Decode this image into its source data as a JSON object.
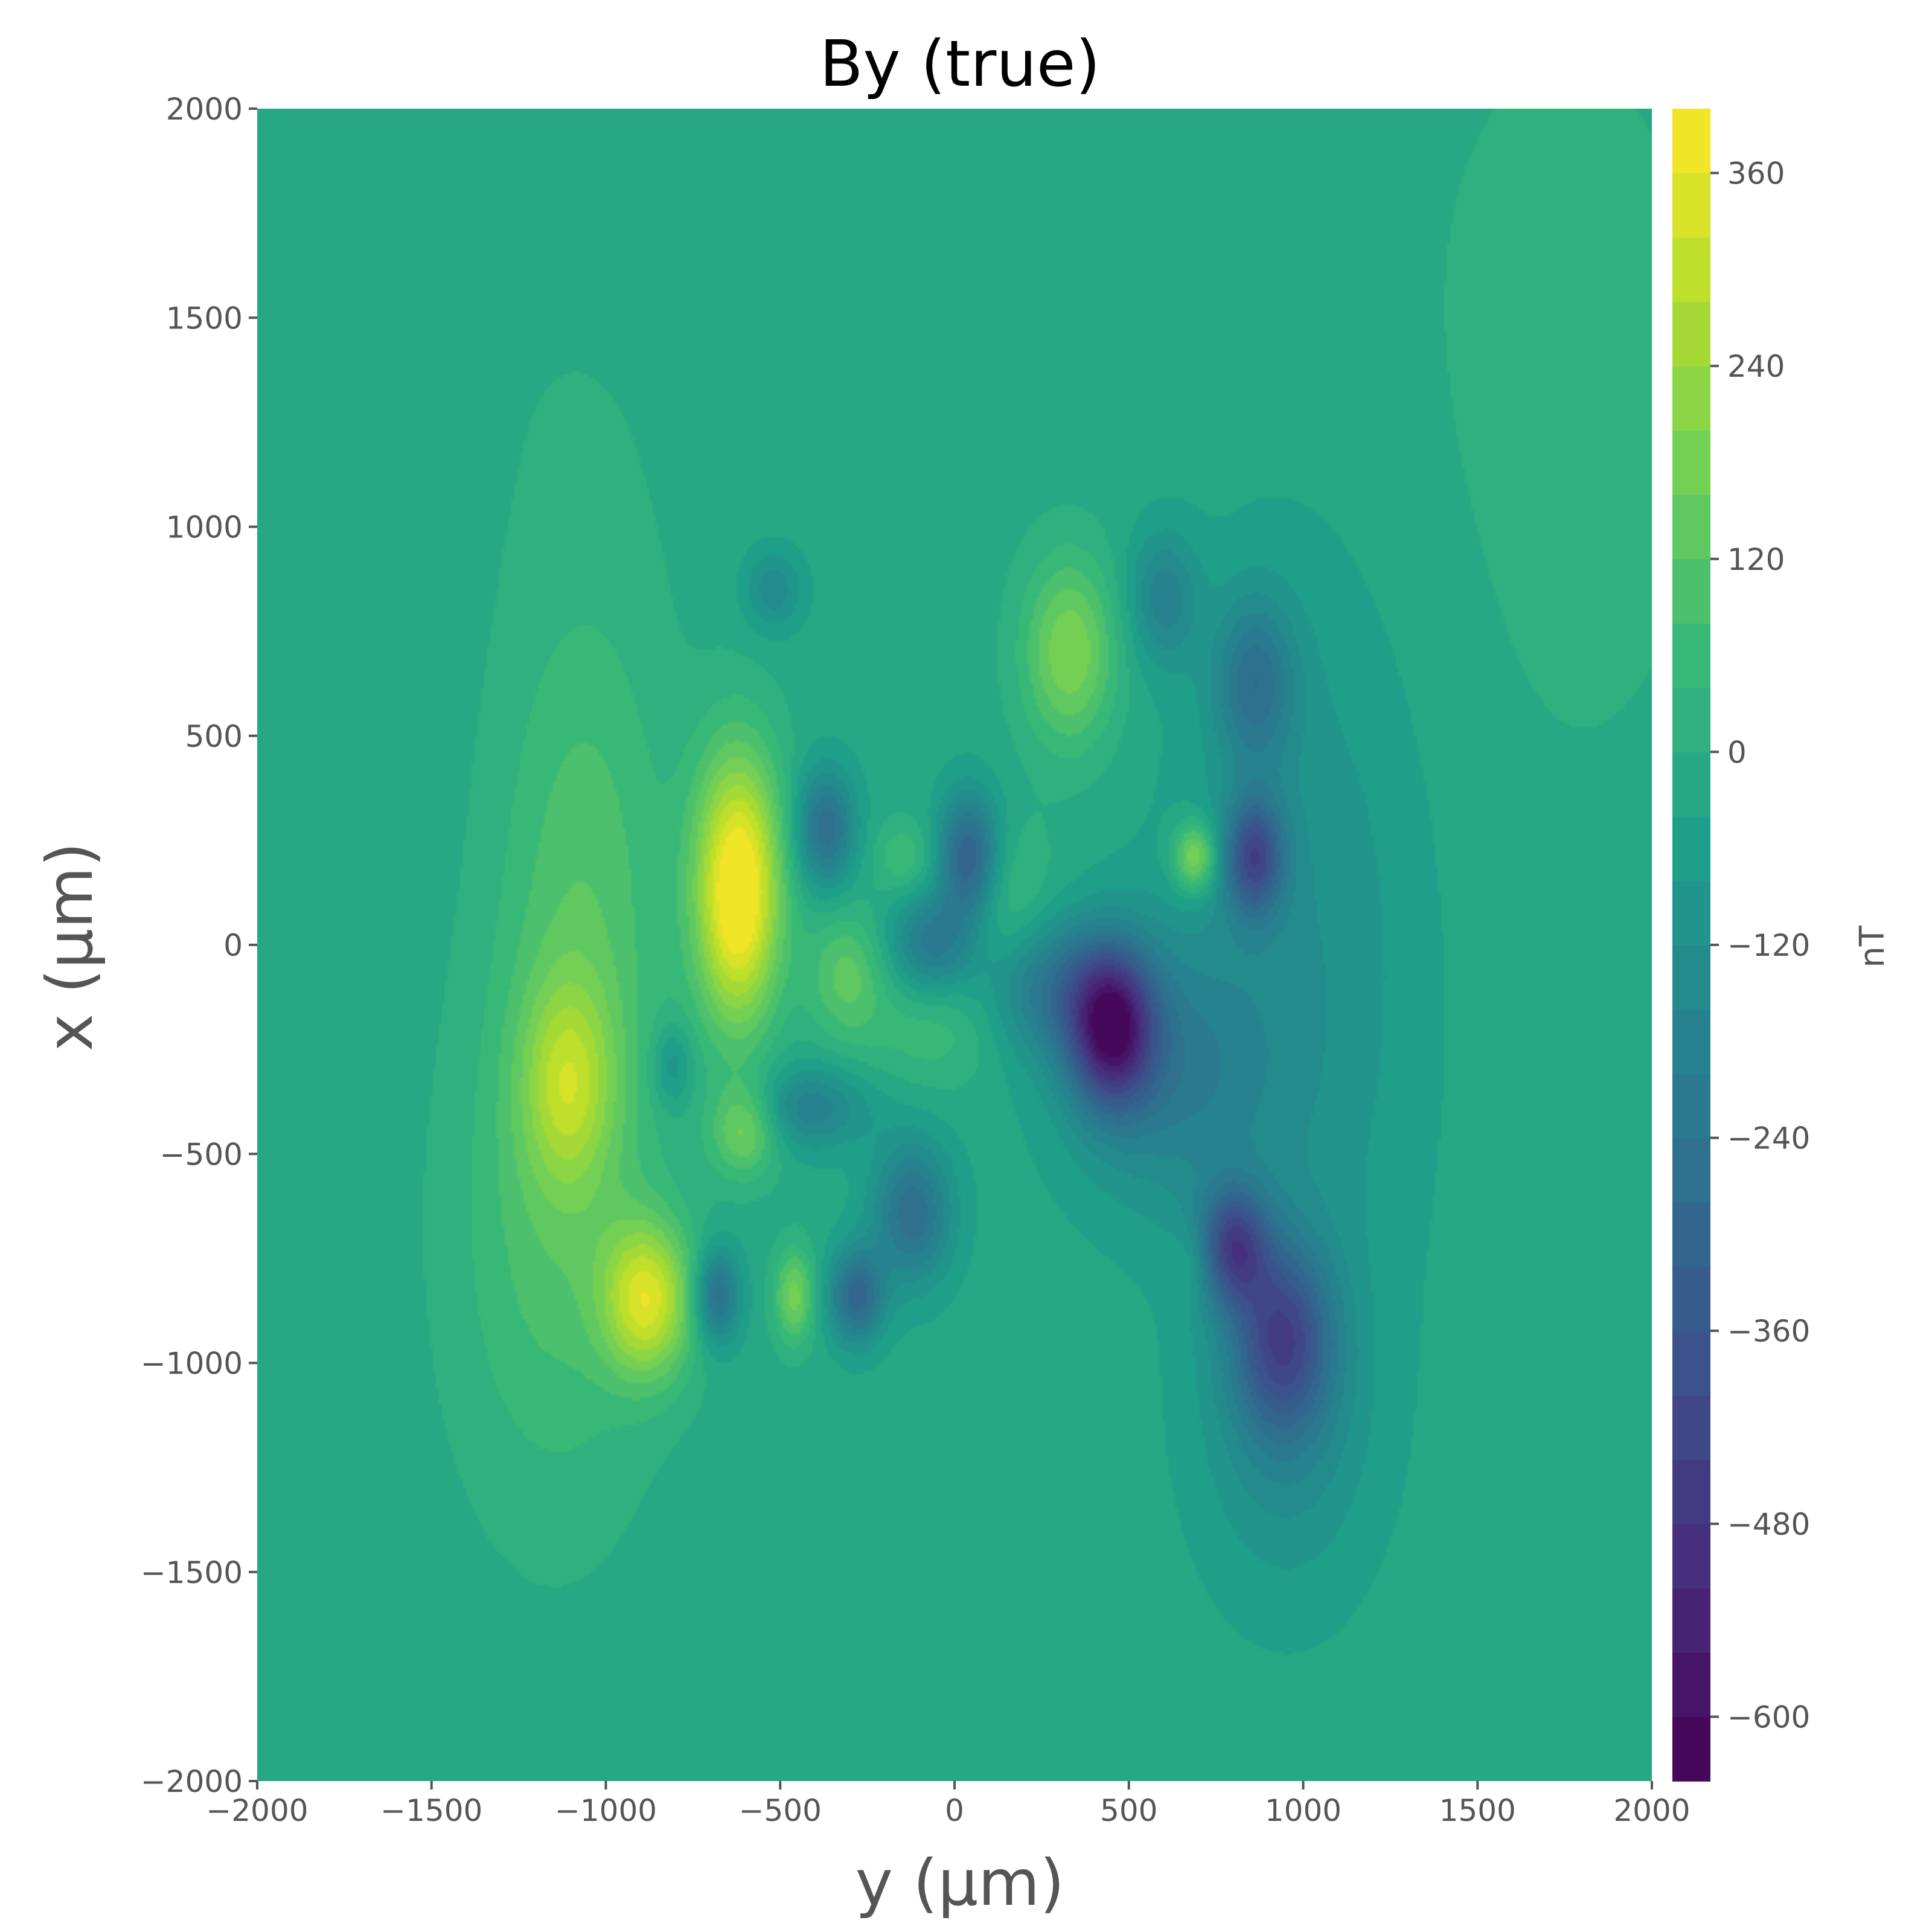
{
  "chart_data": {
    "type": "heatmap",
    "subtype": "filled-contour",
    "title": "By (true)",
    "xlabel": "y (μm)",
    "ylabel": "x (μm)",
    "xlim": [
      -2000,
      2000
    ],
    "ylim": [
      -2000,
      2000
    ],
    "xticks": [
      -2000,
      -1500,
      -1000,
      -500,
      0,
      500,
      1000,
      1500,
      2000
    ],
    "xtick_labels": [
      "−2000",
      "−1500",
      "−1000",
      "−500",
      "0",
      "500",
      "1000",
      "1500",
      "2000"
    ],
    "yticks": [
      -2000,
      -1500,
      -1000,
      -500,
      0,
      500,
      1000,
      1500,
      2000
    ],
    "ytick_labels": [
      "−2000",
      "−1500",
      "−1000",
      "−500",
      "0",
      "500",
      "1000",
      "1500",
      "2000"
    ],
    "grid": false,
    "colormap": "viridis",
    "colorbar": {
      "label": "nT",
      "range": [
        -640,
        400
      ],
      "levels": 26,
      "ticks": [
        360,
        240,
        120,
        0,
        -120,
        -240,
        -360,
        -480,
        -600
      ],
      "tick_labels": [
        "360",
        "240",
        "120",
        "0",
        "−120",
        "−240",
        "−360",
        "−480",
        "−600"
      ]
    },
    "background_value": -20,
    "features": [
      {
        "y": -880,
        "x": -850,
        "value": 330,
        "wy": 90,
        "wx": 130
      },
      {
        "y": -1110,
        "x": -330,
        "value": 200,
        "wy": 90,
        "wx": 170
      },
      {
        "y": -1060,
        "x": 150,
        "value": 120,
        "wy": 170,
        "wx": 500
      },
      {
        "y": -1150,
        "x": -700,
        "value": 110,
        "wy": 200,
        "wx": 450
      },
      {
        "y": -620,
        "x": 50,
        "value": 310,
        "wy": 85,
        "wx": 200
      },
      {
        "y": -620,
        "x": 250,
        "value": 220,
        "wy": 90,
        "wx": 200
      },
      {
        "y": -600,
        "x": -440,
        "value": 200,
        "wy": 70,
        "wx": 80
      },
      {
        "y": -460,
        "x": -840,
        "value": 200,
        "wy": 40,
        "wx": 80
      },
      {
        "y": -310,
        "x": -70,
        "value": 150,
        "wy": 80,
        "wx": 110
      },
      {
        "y": -150,
        "x": 210,
        "value": 80,
        "wy": 60,
        "wx": 60
      },
      {
        "y": -50,
        "x": -200,
        "value": 90,
        "wy": 150,
        "wx": 100
      },
      {
        "y": 330,
        "x": 700,
        "value": 220,
        "wy": 95,
        "wx": 160
      },
      {
        "y": 690,
        "x": 210,
        "value": 260,
        "wy": 45,
        "wx": 60
      },
      {
        "y": 680,
        "x": -760,
        "value": 60,
        "wy": 40,
        "wx": 60
      },
      {
        "y": 70,
        "x": 100,
        "value": 150,
        "wy": 130,
        "wx": 130
      },
      {
        "y": -680,
        "x": -840,
        "value": -260,
        "wy": 45,
        "wx": 80
      },
      {
        "y": -280,
        "x": -840,
        "value": -280,
        "wy": 55,
        "wx": 80
      },
      {
        "y": -370,
        "x": 280,
        "value": -250,
        "wy": 60,
        "wx": 100
      },
      {
        "y": -520,
        "x": 850,
        "value": -130,
        "wy": 60,
        "wx": 70
      },
      {
        "y": -120,
        "x": -640,
        "value": -250,
        "wy": 80,
        "wx": 120
      },
      {
        "y": -420,
        "x": -390,
        "value": -170,
        "wy": 120,
        "wx": 70
      },
      {
        "y": -810,
        "x": -290,
        "value": -120,
        "wy": 40,
        "wx": 70
      },
      {
        "y": 40,
        "x": 200,
        "value": -380,
        "wy": 65,
        "wx": 110
      },
      {
        "y": -60,
        "x": 10,
        "value": -250,
        "wy": 90,
        "wx": 90
      },
      {
        "y": 450,
        "x": -200,
        "value": -470,
        "wy": 85,
        "wx": 130
      },
      {
        "y": 280,
        "x": -100,
        "value": -200,
        "wy": 150,
        "wx": 120
      },
      {
        "y": 600,
        "x": -300,
        "value": -170,
        "wy": 200,
        "wx": 220
      },
      {
        "y": 600,
        "x": 830,
        "value": -160,
        "wy": 70,
        "wx": 110
      },
      {
        "y": 860,
        "x": 630,
        "value": -210,
        "wy": 80,
        "wx": 140
      },
      {
        "y": 860,
        "x": 210,
        "value": -340,
        "wy": 60,
        "wx": 100
      },
      {
        "y": 800,
        "x": -720,
        "value": -340,
        "wy": 70,
        "wx": 100
      },
      {
        "y": 940,
        "x": -940,
        "value": -320,
        "wy": 100,
        "wx": 160
      },
      {
        "y": 950,
        "x": -1150,
        "value": -110,
        "wy": 170,
        "wx": 280
      },
      {
        "y": 1000,
        "x": 0,
        "value": -100,
        "wy": 250,
        "wx": 650
      },
      {
        "y": 1750,
        "x": 1300,
        "value": 30,
        "wy": 450,
        "wx": 900
      },
      {
        "y": -1350,
        "x": 1450,
        "value": 15,
        "wy": 800,
        "wx": 400
      }
    ]
  }
}
